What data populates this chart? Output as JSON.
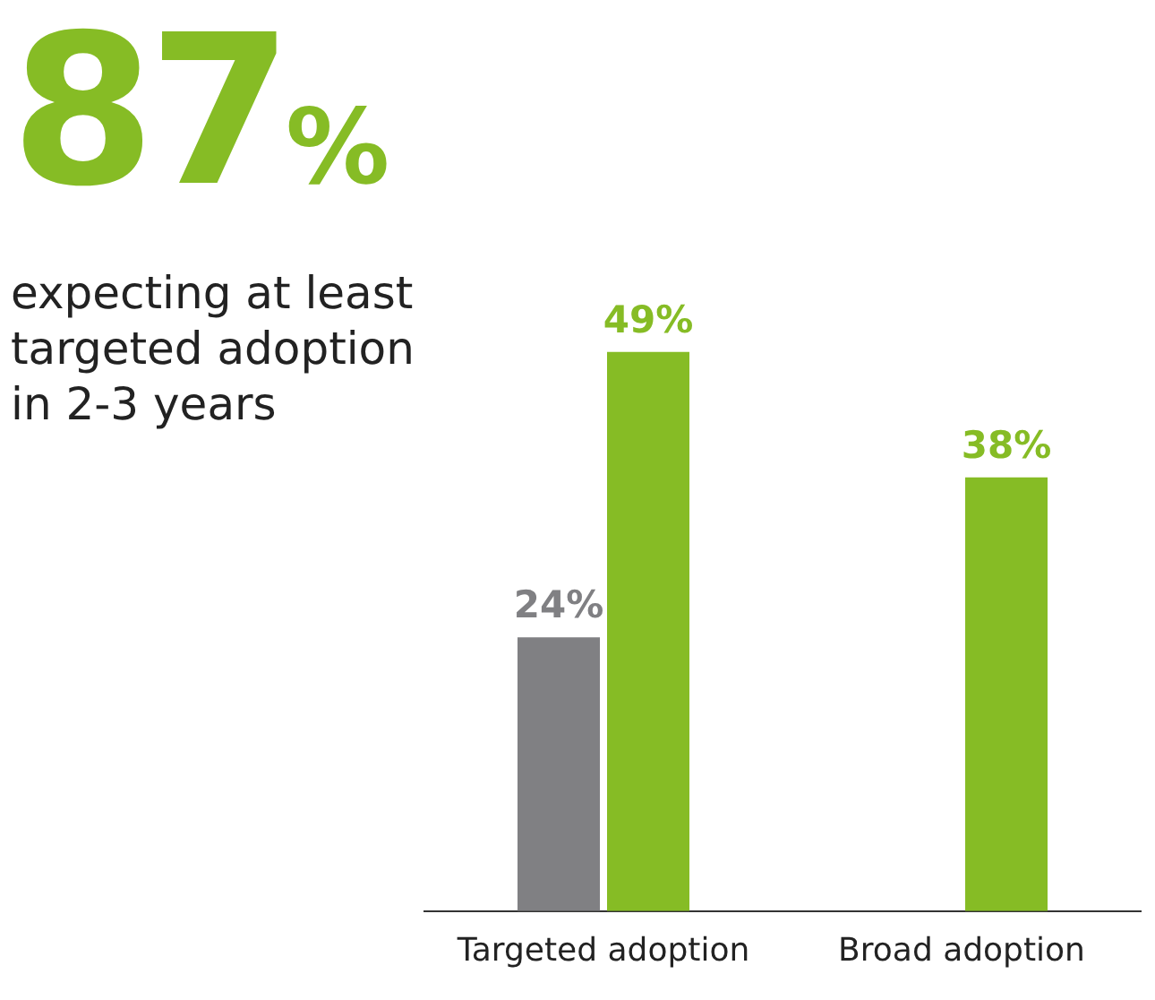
{
  "chart_data": {
    "type": "bar",
    "categories": [
      "Targeted adoption",
      "Broad adoption"
    ],
    "series": [
      {
        "color": "#808083",
        "values": [
          24,
          null
        ],
        "value_labels": [
          "24%",
          null
        ]
      },
      {
        "color": "#86bc25",
        "values": [
          49,
          38
        ],
        "value_labels": [
          "49%",
          "38%"
        ]
      }
    ],
    "annotations": [
      "87%",
      "expecting at least targeted adoption in 2-3 years"
    ],
    "grid": false,
    "legend": false
  }
}
